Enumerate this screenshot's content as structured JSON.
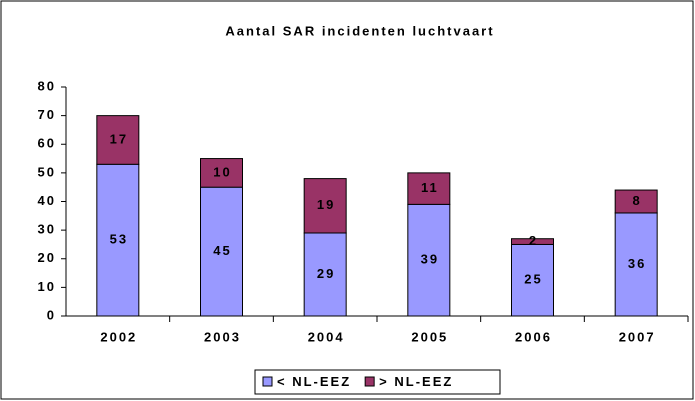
{
  "chart_data": {
    "type": "stacked_bar",
    "title": "Aantal SAR incidenten luchtvaart",
    "categories": [
      "2002",
      "2003",
      "2004",
      "2005",
      "2006",
      "2007"
    ],
    "series": [
      {
        "name": "< NL-EEZ",
        "color": "#9999ff",
        "values": [
          53,
          45,
          29,
          39,
          25,
          36
        ]
      },
      {
        "name": "> NL-EEZ",
        "color": "#993366",
        "values": [
          17,
          10,
          19,
          11,
          2,
          8
        ]
      }
    ],
    "ylim": [
      0,
      80
    ],
    "yticks": [
      0,
      10,
      20,
      30,
      40,
      50,
      60,
      70,
      80
    ],
    "grid": false,
    "legend": "bottom"
  }
}
